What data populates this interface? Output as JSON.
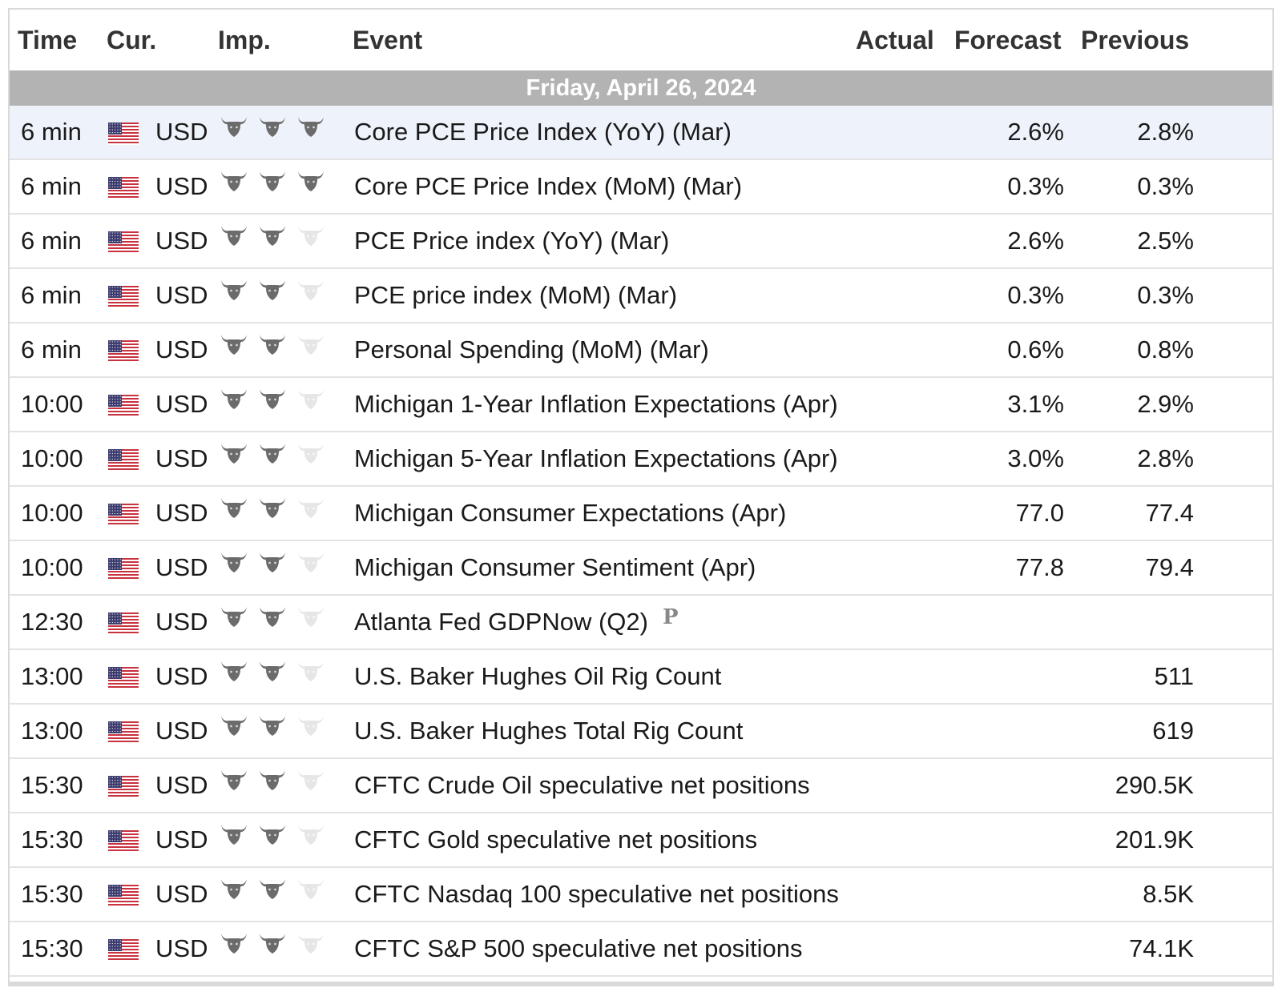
{
  "header": {
    "time": "Time",
    "currency": "Cur.",
    "importance": "Imp.",
    "event": "Event",
    "actual": "Actual",
    "forecast": "Forecast",
    "previous": "Previous"
  },
  "date_label": "Friday, April 26, 2024",
  "colors": {
    "bull_active": "#6b6b6b",
    "bull_inactive": "#e6e6e6",
    "date_band": "#b3b3b3",
    "highlight": "#eef3fb"
  },
  "rows": [
    {
      "time": "6 min",
      "currency": "USD",
      "importance": 3,
      "event": "Core PCE Price Index (YoY) (Mar)",
      "forecast": "2.6%",
      "previous": "2.8%"
    },
    {
      "time": "6 min",
      "currency": "USD",
      "importance": 3,
      "event": "Core PCE Price Index (MoM) (Mar)",
      "forecast": "0.3%",
      "previous": "0.3%"
    },
    {
      "time": "6 min",
      "currency": "USD",
      "importance": 2,
      "event": "PCE Price index (YoY) (Mar)",
      "forecast": "2.6%",
      "previous": "2.5%"
    },
    {
      "time": "6 min",
      "currency": "USD",
      "importance": 2,
      "event": "PCE price index (MoM) (Mar)",
      "forecast": "0.3%",
      "previous": "0.3%"
    },
    {
      "time": "6 min",
      "currency": "USD",
      "importance": 2,
      "event": "Personal Spending (MoM) (Mar)",
      "forecast": "0.6%",
      "previous": "0.8%"
    },
    {
      "time": "10:00",
      "currency": "USD",
      "importance": 2,
      "event": "Michigan 1-Year Inflation Expectations (Apr)",
      "forecast": "3.1%",
      "previous": "2.9%"
    },
    {
      "time": "10:00",
      "currency": "USD",
      "importance": 2,
      "event": "Michigan 5-Year Inflation Expectations (Apr)",
      "forecast": "3.0%",
      "previous": "2.8%"
    },
    {
      "time": "10:00",
      "currency": "USD",
      "importance": 2,
      "event": "Michigan Consumer Expectations (Apr)",
      "forecast": "77.0",
      "previous": "77.4"
    },
    {
      "time": "10:00",
      "currency": "USD",
      "importance": 2,
      "event": "Michigan Consumer Sentiment (Apr)",
      "forecast": "77.8",
      "previous": "79.4"
    },
    {
      "time": "12:30",
      "currency": "USD",
      "importance": 2,
      "event": "Atlanta Fed GDPNow (Q2)",
      "badge": "P",
      "forecast": "",
      "previous": ""
    },
    {
      "time": "13:00",
      "currency": "USD",
      "importance": 2,
      "event": "U.S. Baker Hughes Oil Rig Count",
      "forecast": "",
      "previous": "511"
    },
    {
      "time": "13:00",
      "currency": "USD",
      "importance": 2,
      "event": "U.S. Baker Hughes Total Rig Count",
      "forecast": "",
      "previous": "619"
    },
    {
      "time": "15:30",
      "currency": "USD",
      "importance": 2,
      "event": "CFTC Crude Oil speculative net positions",
      "forecast": "",
      "previous": "290.5K"
    },
    {
      "time": "15:30",
      "currency": "USD",
      "importance": 2,
      "event": "CFTC Gold speculative net positions",
      "forecast": "",
      "previous": "201.9K"
    },
    {
      "time": "15:30",
      "currency": "USD",
      "importance": 2,
      "event": "CFTC Nasdaq 100 speculative net positions",
      "forecast": "",
      "previous": "8.5K"
    },
    {
      "time": "15:30",
      "currency": "USD",
      "importance": 2,
      "event": "CFTC S&P 500 speculative net positions",
      "forecast": "",
      "previous": "74.1K"
    }
  ]
}
